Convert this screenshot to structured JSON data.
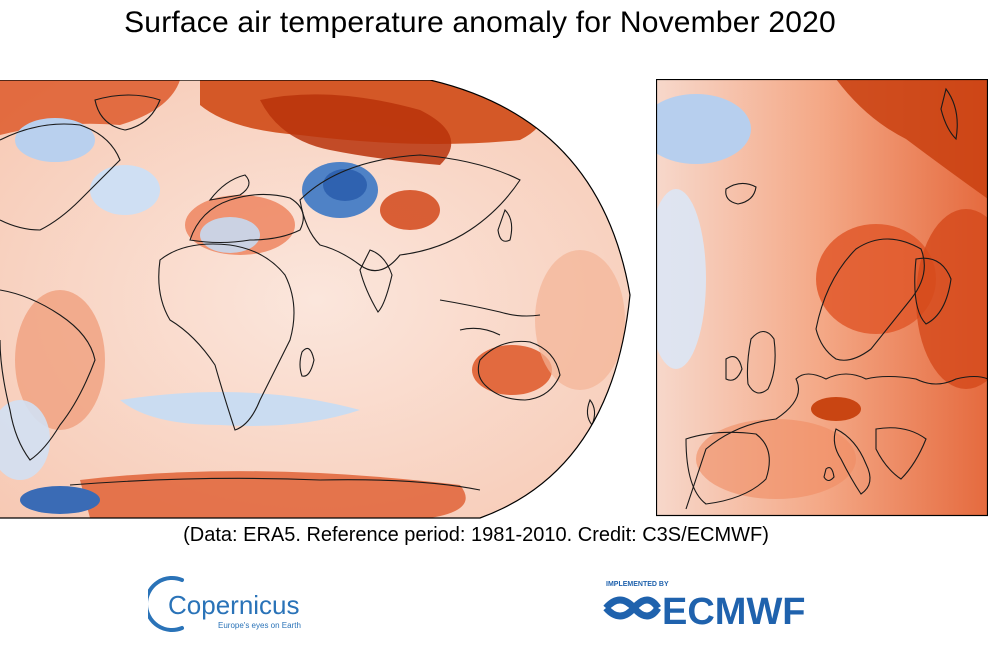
{
  "title": "Surface air temperature anomaly for November 2020",
  "caption": "(Data: ERA5.  Reference period: 1981-2010.  Credit: C3S/ECMWF)",
  "maps": [
    {
      "name": "world",
      "projection": "robinson-crop"
    },
    {
      "name": "europe",
      "projection": "lambert-crop"
    }
  ],
  "colors": {
    "strong_warm": "#c2360a",
    "warm": "#e8623a",
    "mild_warm": "#f5b49b",
    "near_zero": "#fbe3d8",
    "cool": "#c9daf0",
    "strong_cool": "#4d7fc4",
    "coast": "#1a1a1a",
    "copernicus_blue": "#2a73b8",
    "ecmwf_blue": "#1f62ad"
  },
  "logos": {
    "copernicus": {
      "name": "Copernicus",
      "tagline": "Europe's eyes on Earth"
    },
    "ecmwf": {
      "name": "ECMWF",
      "tag": "IMPLEMENTED BY"
    }
  }
}
